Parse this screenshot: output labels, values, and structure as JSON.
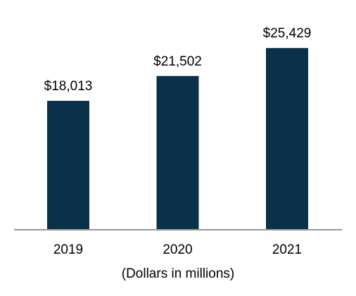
{
  "chart_data": {
    "type": "bar",
    "categories": [
      "2019",
      "2020",
      "2021"
    ],
    "values": [
      18013,
      21502,
      25429
    ],
    "value_labels": [
      "$18,013",
      "$21,502",
      "$25,429"
    ],
    "color": "#0b3049",
    "x_label": "(Dollars in millions)",
    "ylim": [
      0,
      30000
    ]
  }
}
